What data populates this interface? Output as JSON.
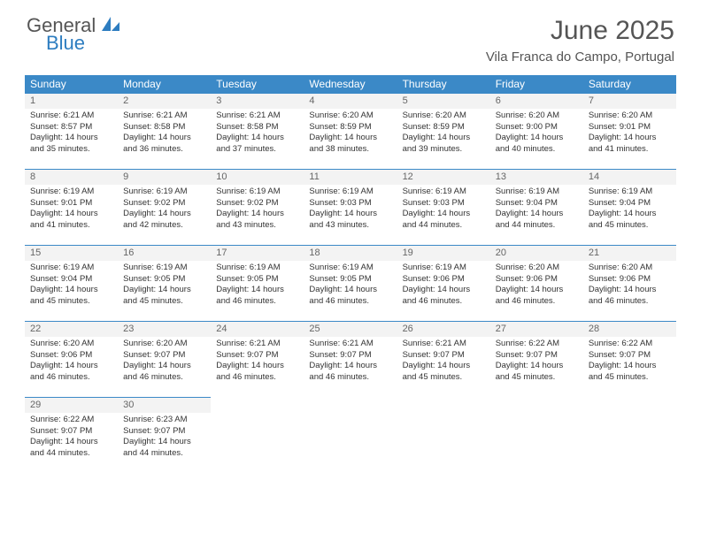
{
  "logo": {
    "word1": "General",
    "word2": "Blue",
    "shape_fill": "#2d7dc0"
  },
  "header": {
    "title": "June 2025",
    "location": "Vila Franca do Campo, Portugal"
  },
  "theme": {
    "header_bg": "#3b89c7",
    "header_fg": "#ffffff",
    "border": "#3b89c7",
    "daynum_bg": "#f3f3f3"
  },
  "weekdays": [
    "Sunday",
    "Monday",
    "Tuesday",
    "Wednesday",
    "Thursday",
    "Friday",
    "Saturday"
  ],
  "weeks": [
    [
      {
        "day": "1",
        "sunrise": "6:21 AM",
        "sunset": "8:57 PM",
        "daylight": "14 hours and 35 minutes."
      },
      {
        "day": "2",
        "sunrise": "6:21 AM",
        "sunset": "8:58 PM",
        "daylight": "14 hours and 36 minutes."
      },
      {
        "day": "3",
        "sunrise": "6:21 AM",
        "sunset": "8:58 PM",
        "daylight": "14 hours and 37 minutes."
      },
      {
        "day": "4",
        "sunrise": "6:20 AM",
        "sunset": "8:59 PM",
        "daylight": "14 hours and 38 minutes."
      },
      {
        "day": "5",
        "sunrise": "6:20 AM",
        "sunset": "8:59 PM",
        "daylight": "14 hours and 39 minutes."
      },
      {
        "day": "6",
        "sunrise": "6:20 AM",
        "sunset": "9:00 PM",
        "daylight": "14 hours and 40 minutes."
      },
      {
        "day": "7",
        "sunrise": "6:20 AM",
        "sunset": "9:01 PM",
        "daylight": "14 hours and 41 minutes."
      }
    ],
    [
      {
        "day": "8",
        "sunrise": "6:19 AM",
        "sunset": "9:01 PM",
        "daylight": "14 hours and 41 minutes."
      },
      {
        "day": "9",
        "sunrise": "6:19 AM",
        "sunset": "9:02 PM",
        "daylight": "14 hours and 42 minutes."
      },
      {
        "day": "10",
        "sunrise": "6:19 AM",
        "sunset": "9:02 PM",
        "daylight": "14 hours and 43 minutes."
      },
      {
        "day": "11",
        "sunrise": "6:19 AM",
        "sunset": "9:03 PM",
        "daylight": "14 hours and 43 minutes."
      },
      {
        "day": "12",
        "sunrise": "6:19 AM",
        "sunset": "9:03 PM",
        "daylight": "14 hours and 44 minutes."
      },
      {
        "day": "13",
        "sunrise": "6:19 AM",
        "sunset": "9:04 PM",
        "daylight": "14 hours and 44 minutes."
      },
      {
        "day": "14",
        "sunrise": "6:19 AM",
        "sunset": "9:04 PM",
        "daylight": "14 hours and 45 minutes."
      }
    ],
    [
      {
        "day": "15",
        "sunrise": "6:19 AM",
        "sunset": "9:04 PM",
        "daylight": "14 hours and 45 minutes."
      },
      {
        "day": "16",
        "sunrise": "6:19 AM",
        "sunset": "9:05 PM",
        "daylight": "14 hours and 45 minutes."
      },
      {
        "day": "17",
        "sunrise": "6:19 AM",
        "sunset": "9:05 PM",
        "daylight": "14 hours and 46 minutes."
      },
      {
        "day": "18",
        "sunrise": "6:19 AM",
        "sunset": "9:05 PM",
        "daylight": "14 hours and 46 minutes."
      },
      {
        "day": "19",
        "sunrise": "6:19 AM",
        "sunset": "9:06 PM",
        "daylight": "14 hours and 46 minutes."
      },
      {
        "day": "20",
        "sunrise": "6:20 AM",
        "sunset": "9:06 PM",
        "daylight": "14 hours and 46 minutes."
      },
      {
        "day": "21",
        "sunrise": "6:20 AM",
        "sunset": "9:06 PM",
        "daylight": "14 hours and 46 minutes."
      }
    ],
    [
      {
        "day": "22",
        "sunrise": "6:20 AM",
        "sunset": "9:06 PM",
        "daylight": "14 hours and 46 minutes."
      },
      {
        "day": "23",
        "sunrise": "6:20 AM",
        "sunset": "9:07 PM",
        "daylight": "14 hours and 46 minutes."
      },
      {
        "day": "24",
        "sunrise": "6:21 AM",
        "sunset": "9:07 PM",
        "daylight": "14 hours and 46 minutes."
      },
      {
        "day": "25",
        "sunrise": "6:21 AM",
        "sunset": "9:07 PM",
        "daylight": "14 hours and 46 minutes."
      },
      {
        "day": "26",
        "sunrise": "6:21 AM",
        "sunset": "9:07 PM",
        "daylight": "14 hours and 45 minutes."
      },
      {
        "day": "27",
        "sunrise": "6:22 AM",
        "sunset": "9:07 PM",
        "daylight": "14 hours and 45 minutes."
      },
      {
        "day": "28",
        "sunrise": "6:22 AM",
        "sunset": "9:07 PM",
        "daylight": "14 hours and 45 minutes."
      }
    ],
    [
      {
        "day": "29",
        "sunrise": "6:22 AM",
        "sunset": "9:07 PM",
        "daylight": "14 hours and 44 minutes."
      },
      {
        "day": "30",
        "sunrise": "6:23 AM",
        "sunset": "9:07 PM",
        "daylight": "14 hours and 44 minutes."
      },
      null,
      null,
      null,
      null,
      null
    ]
  ],
  "labels": {
    "sunrise_prefix": "Sunrise: ",
    "sunset_prefix": "Sunset: ",
    "daylight_prefix": "Daylight: "
  }
}
